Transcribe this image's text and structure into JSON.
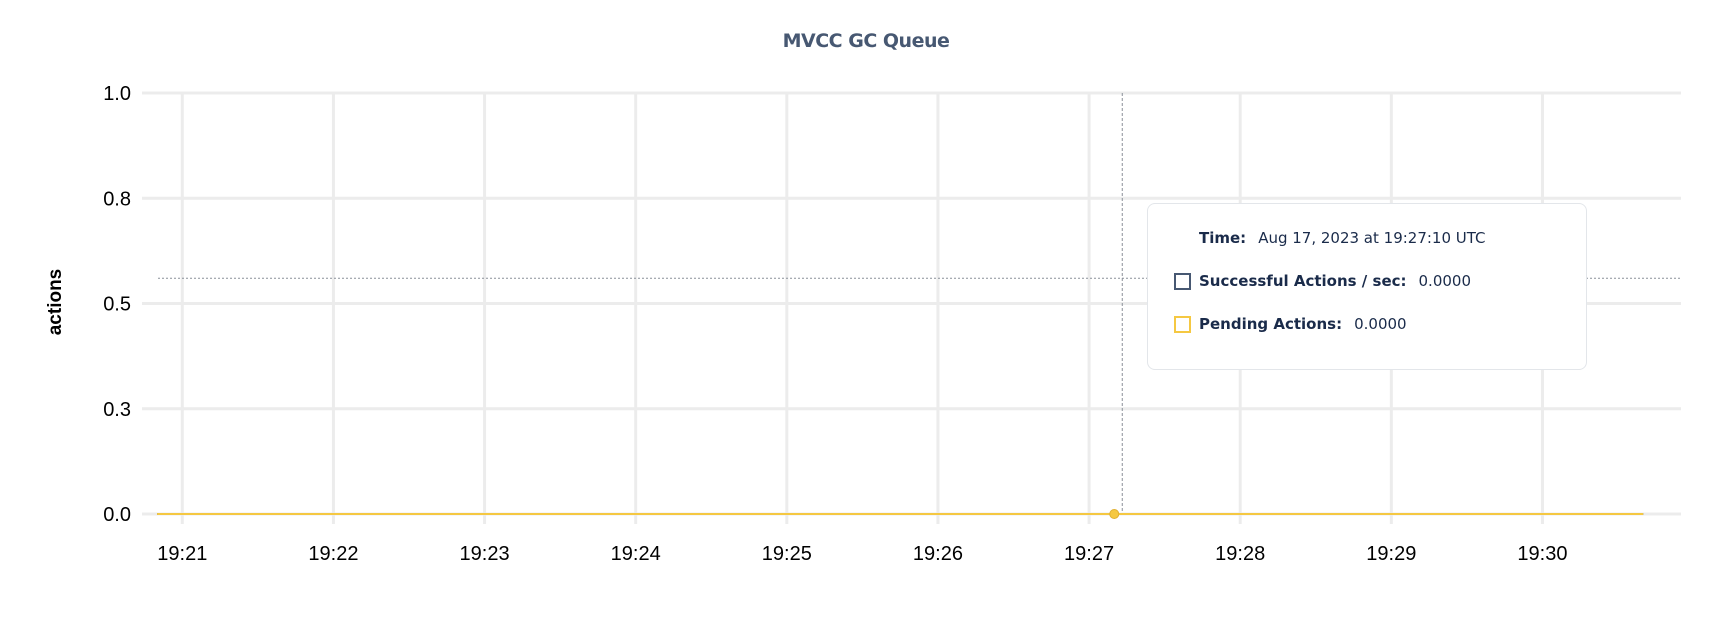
{
  "chart_data": {
    "type": "line",
    "title": "MVCC GC Queue",
    "xlabel": "",
    "ylabel": "actions",
    "ylim": [
      0,
      1
    ],
    "y_ticks": [
      {
        "value": 0,
        "label": "0.0"
      },
      {
        "value": 0.25,
        "label": "0.3"
      },
      {
        "value": 0.5,
        "label": "0.5"
      },
      {
        "value": 0.75,
        "label": "0.8"
      },
      {
        "value": 1,
        "label": "1.0"
      }
    ],
    "xlim": [
      "19:20:44",
      "19:30:55"
    ],
    "x_ticks": [
      "19:21",
      "19:22",
      "19:23",
      "19:24",
      "19:25",
      "19:26",
      "19:27",
      "19:28",
      "19:29",
      "19:30"
    ],
    "grid": true,
    "series": [
      {
        "name": "Successful Actions / sec",
        "color": "#475872",
        "x": [
          "19:20:50",
          "19:30:40"
        ],
        "values": [
          0,
          0
        ]
      },
      {
        "name": "Pending Actions",
        "color": "#f5c842",
        "x": [
          "19:20:50",
          "19:30:40"
        ],
        "values": [
          0,
          0
        ]
      }
    ],
    "hover": {
      "time": "19:27:10",
      "crosshair_y": 0.56
    }
  },
  "tooltip": {
    "time_label": "Time:",
    "time_value": "Aug 17, 2023 at 19:27:10 UTC",
    "rows": [
      {
        "label": "Successful Actions / sec:",
        "value": "0.0000",
        "color": "#475872"
      },
      {
        "label": "Pending Actions:",
        "value": "0.0000",
        "color": "#f5c842"
      }
    ]
  }
}
